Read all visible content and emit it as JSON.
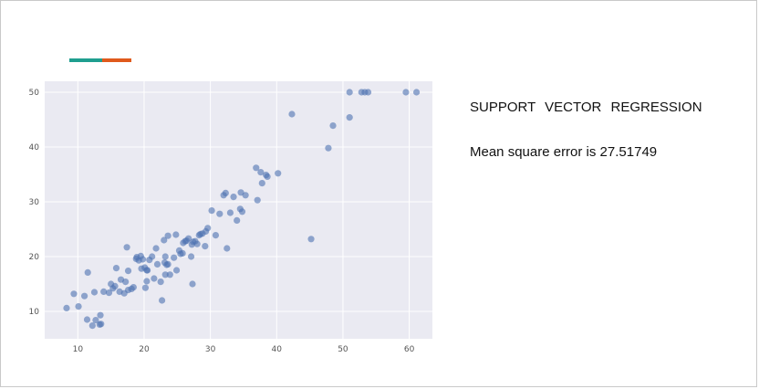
{
  "slide": {
    "title": "SUPPORT   VECTOR  REGRESSION",
    "mse_text": "Mean square error is 27.51749",
    "accent_colors": [
      "#1f9e8f",
      "#e05a1c"
    ]
  },
  "chart_data": {
    "type": "scatter",
    "title": "",
    "xlabel": "",
    "ylabel": "",
    "xlim": [
      5,
      63.5
    ],
    "ylim": [
      5,
      52
    ],
    "xticks": [
      10,
      20,
      30,
      40,
      50,
      60
    ],
    "yticks": [
      10,
      20,
      30,
      40,
      50
    ],
    "grid": true,
    "background": "#eaeaf2",
    "point_color": "#4c72b0",
    "series": [
      {
        "points": [
          [
            8.3,
            10.6
          ],
          [
            9.4,
            13.2
          ],
          [
            10.1,
            10.9
          ],
          [
            11.0,
            12.8
          ],
          [
            11.4,
            8.5
          ],
          [
            11.5,
            17.1
          ],
          [
            12.2,
            7.4
          ],
          [
            12.5,
            13.5
          ],
          [
            12.7,
            8.4
          ],
          [
            13.3,
            7.6
          ],
          [
            13.4,
            9.3
          ],
          [
            13.5,
            7.7
          ],
          [
            13.9,
            13.6
          ],
          [
            14.7,
            13.4
          ],
          [
            15.0,
            15.0
          ],
          [
            15.3,
            14.2
          ],
          [
            15.6,
            14.6
          ],
          [
            15.8,
            17.9
          ],
          [
            16.3,
            13.6
          ],
          [
            16.5,
            15.8
          ],
          [
            17.0,
            13.3
          ],
          [
            17.2,
            15.4
          ],
          [
            17.4,
            21.7
          ],
          [
            17.6,
            13.9
          ],
          [
            17.6,
            17.4
          ],
          [
            18.1,
            14.1
          ],
          [
            18.4,
            14.4
          ],
          [
            18.8,
            19.6
          ],
          [
            18.9,
            19.9
          ],
          [
            19.2,
            19.3
          ],
          [
            19.5,
            20.1
          ],
          [
            19.6,
            17.8
          ],
          [
            19.8,
            19.5
          ],
          [
            20.1,
            18.0
          ],
          [
            20.2,
            14.3
          ],
          [
            20.4,
            15.5
          ],
          [
            20.4,
            17.5
          ],
          [
            20.5,
            17.5
          ],
          [
            20.8,
            19.4
          ],
          [
            21.2,
            20.0
          ],
          [
            21.5,
            16.0
          ],
          [
            21.8,
            21.5
          ],
          [
            22.0,
            18.6
          ],
          [
            22.5,
            15.4
          ],
          [
            22.7,
            12.0
          ],
          [
            23.0,
            23.0
          ],
          [
            23.1,
            18.9
          ],
          [
            23.2,
            16.7
          ],
          [
            23.2,
            20.0
          ],
          [
            23.4,
            18.5
          ],
          [
            23.6,
            18.6
          ],
          [
            23.6,
            23.8
          ],
          [
            23.9,
            16.7
          ],
          [
            24.5,
            19.8
          ],
          [
            24.8,
            24.0
          ],
          [
            24.9,
            17.5
          ],
          [
            25.3,
            21.1
          ],
          [
            25.5,
            20.5
          ],
          [
            25.8,
            20.6
          ],
          [
            25.9,
            22.5
          ],
          [
            26.2,
            22.8
          ],
          [
            26.4,
            22.9
          ],
          [
            26.7,
            23.3
          ],
          [
            27.1,
            20.0
          ],
          [
            27.2,
            22.2
          ],
          [
            27.3,
            15.0
          ],
          [
            27.4,
            22.7
          ],
          [
            27.7,
            22.8
          ],
          [
            28.0,
            22.3
          ],
          [
            28.3,
            23.9
          ],
          [
            28.5,
            24.1
          ],
          [
            28.8,
            24.2
          ],
          [
            29.2,
            21.9
          ],
          [
            29.3,
            24.6
          ],
          [
            29.6,
            25.2
          ],
          [
            30.2,
            28.4
          ],
          [
            30.8,
            23.9
          ],
          [
            31.4,
            27.8
          ],
          [
            32.0,
            31.2
          ],
          [
            32.3,
            31.6
          ],
          [
            32.5,
            21.5
          ],
          [
            33.0,
            28.0
          ],
          [
            33.5,
            30.9
          ],
          [
            34.0,
            26.6
          ],
          [
            34.5,
            28.7
          ],
          [
            34.6,
            31.7
          ],
          [
            34.8,
            28.2
          ],
          [
            35.3,
            31.2
          ],
          [
            36.9,
            36.2
          ],
          [
            37.1,
            30.3
          ],
          [
            37.6,
            35.4
          ],
          [
            37.8,
            33.4
          ],
          [
            38.4,
            34.9
          ],
          [
            38.6,
            34.6
          ],
          [
            40.2,
            35.2
          ],
          [
            42.3,
            46.0
          ],
          [
            45.2,
            23.2
          ],
          [
            47.8,
            39.8
          ],
          [
            48.5,
            43.9
          ],
          [
            51.0,
            45.4
          ],
          [
            51.0,
            50.0
          ],
          [
            52.8,
            50.0
          ],
          [
            53.3,
            50.0
          ],
          [
            53.8,
            50.0
          ],
          [
            59.5,
            50.0
          ],
          [
            61.1,
            50.0
          ]
        ]
      }
    ]
  }
}
